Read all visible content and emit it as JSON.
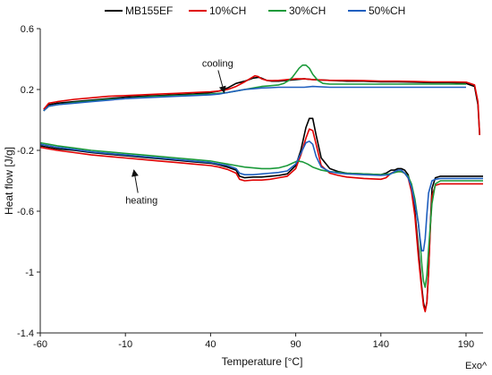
{
  "chart_data": {
    "type": "line",
    "title": "",
    "xlabel": "Temperature [°C]",
    "ylabel": "Heat flow [J/g]",
    "corner_note": "Exo^",
    "xlim": [
      -60,
      200
    ],
    "ylim": [
      -1.4,
      0.6
    ],
    "xticks": [
      -60,
      -10,
      40,
      90,
      140,
      190
    ],
    "yticks": [
      0.6,
      0.2,
      -0.2,
      -0.6,
      -1,
      -1.4
    ],
    "ytick_labels": [
      "0.6",
      "0.2",
      "-0.2",
      "-0.6",
      "-1",
      "-1.4"
    ],
    "grid": false,
    "legend_position": "top",
    "annotations": [
      {
        "text": "cooling",
        "x": 35,
        "y": 0.35,
        "arrow_to": [
          48,
          0.18
        ]
      },
      {
        "text": "heating",
        "x": -10,
        "y": -0.55,
        "arrow_to": [
          -5,
          -0.33
        ]
      }
    ],
    "series": [
      {
        "name": "MB155EF",
        "color": "#000000",
        "cooling": {
          "x": [
            -58,
            -55,
            -50,
            -40,
            -30,
            -20,
            -10,
            0,
            10,
            20,
            30,
            40,
            45,
            50,
            55,
            60,
            65,
            68,
            70,
            73,
            76,
            80,
            85,
            90,
            95,
            100,
            110,
            120,
            130,
            140,
            150,
            160,
            170,
            180,
            190,
            195,
            197,
            198
          ],
          "y": [
            0.06,
            0.1,
            0.11,
            0.12,
            0.13,
            0.14,
            0.15,
            0.155,
            0.16,
            0.165,
            0.17,
            0.18,
            0.19,
            0.21,
            0.24,
            0.255,
            0.275,
            0.28,
            0.275,
            0.26,
            0.255,
            0.255,
            0.26,
            0.265,
            0.27,
            0.265,
            0.26,
            0.255,
            0.255,
            0.25,
            0.25,
            0.248,
            0.245,
            0.245,
            0.24,
            0.22,
            0.1,
            -0.1
          ]
        },
        "heating": {
          "x": [
            -60,
            -55,
            -50,
            -40,
            -30,
            -20,
            -10,
            0,
            10,
            20,
            30,
            40,
            45,
            50,
            55,
            57,
            60,
            65,
            70,
            75,
            80,
            85,
            90,
            93,
            96,
            98,
            100,
            102,
            105,
            110,
            115,
            120,
            130,
            140,
            143,
            146,
            148,
            150,
            152,
            154,
            156,
            158,
            160,
            162,
            164,
            165,
            166,
            167,
            168,
            169,
            170,
            172,
            175,
            180,
            190,
            200
          ],
          "y": [
            -0.17,
            -0.18,
            -0.19,
            -0.2,
            -0.215,
            -0.225,
            -0.235,
            -0.245,
            -0.255,
            -0.265,
            -0.275,
            -0.285,
            -0.295,
            -0.31,
            -0.33,
            -0.37,
            -0.38,
            -0.375,
            -0.375,
            -0.37,
            -0.365,
            -0.355,
            -0.3,
            -0.2,
            -0.05,
            0.01,
            0.01,
            -0.1,
            -0.25,
            -0.32,
            -0.34,
            -0.35,
            -0.355,
            -0.36,
            -0.35,
            -0.33,
            -0.33,
            -0.32,
            -0.32,
            -0.33,
            -0.36,
            -0.45,
            -0.6,
            -0.85,
            -1.1,
            -1.2,
            -1.25,
            -1.2,
            -1.0,
            -0.7,
            -0.45,
            -0.38,
            -0.37,
            -0.37,
            -0.37,
            -0.37
          ]
        }
      },
      {
        "name": "10%CH",
        "color": "#e00000",
        "cooling": {
          "x": [
            -58,
            -55,
            -50,
            -40,
            -30,
            -20,
            -10,
            0,
            10,
            20,
            30,
            40,
            45,
            50,
            55,
            60,
            63,
            66,
            68,
            70,
            73,
            76,
            80,
            85,
            90,
            95,
            100,
            110,
            120,
            130,
            140,
            150,
            160,
            170,
            180,
            190,
            195,
            197,
            198
          ],
          "y": [
            0.07,
            0.11,
            0.12,
            0.135,
            0.145,
            0.155,
            0.16,
            0.165,
            0.17,
            0.175,
            0.18,
            0.185,
            0.19,
            0.2,
            0.22,
            0.25,
            0.27,
            0.29,
            0.285,
            0.27,
            0.26,
            0.258,
            0.26,
            0.265,
            0.27,
            0.27,
            0.265,
            0.26,
            0.26,
            0.258,
            0.255,
            0.255,
            0.253,
            0.25,
            0.25,
            0.248,
            0.23,
            0.12,
            -0.1
          ]
        },
        "heating": {
          "x": [
            -60,
            -55,
            -50,
            -40,
            -30,
            -20,
            -10,
            0,
            10,
            20,
            30,
            40,
            45,
            50,
            55,
            57,
            60,
            65,
            70,
            75,
            80,
            85,
            90,
            93,
            96,
            98,
            100,
            102,
            105,
            110,
            115,
            120,
            130,
            140,
            143,
            146,
            148,
            150,
            152,
            154,
            156,
            158,
            160,
            162,
            164,
            165,
            166,
            167,
            168,
            169,
            170,
            172,
            175,
            180,
            190,
            200
          ],
          "y": [
            -0.18,
            -0.19,
            -0.2,
            -0.215,
            -0.23,
            -0.24,
            -0.25,
            -0.26,
            -0.27,
            -0.28,
            -0.29,
            -0.3,
            -0.31,
            -0.325,
            -0.35,
            -0.39,
            -0.4,
            -0.395,
            -0.395,
            -0.39,
            -0.38,
            -0.37,
            -0.32,
            -0.23,
            -0.12,
            -0.06,
            -0.07,
            -0.16,
            -0.3,
            -0.35,
            -0.365,
            -0.375,
            -0.385,
            -0.39,
            -0.38,
            -0.35,
            -0.34,
            -0.34,
            -0.34,
            -0.35,
            -0.38,
            -0.47,
            -0.63,
            -0.9,
            -1.12,
            -1.22,
            -1.26,
            -1.2,
            -1.0,
            -0.72,
            -0.5,
            -0.43,
            -0.42,
            -0.42,
            -0.42,
            -0.42
          ]
        }
      },
      {
        "name": "30%CH",
        "color": "#1b9a3a",
        "cooling": {
          "x": [
            -58,
            -55,
            -50,
            -40,
            -30,
            -20,
            -10,
            0,
            10,
            20,
            30,
            40,
            45,
            50,
            55,
            60,
            65,
            70,
            75,
            80,
            83,
            86,
            88,
            90,
            92,
            94,
            96,
            98,
            100,
            103,
            106,
            110,
            120,
            130,
            140,
            150,
            160,
            170,
            180,
            190
          ],
          "y": [
            0.06,
            0.09,
            0.1,
            0.115,
            0.125,
            0.135,
            0.14,
            0.15,
            0.155,
            0.16,
            0.165,
            0.17,
            0.175,
            0.18,
            0.19,
            0.2,
            0.21,
            0.22,
            0.225,
            0.23,
            0.24,
            0.26,
            0.28,
            0.31,
            0.34,
            0.36,
            0.36,
            0.34,
            0.3,
            0.26,
            0.24,
            0.235,
            0.235,
            0.235,
            0.235,
            0.235,
            0.235,
            0.235,
            0.235,
            0.235
          ]
        },
        "heating": {
          "x": [
            -60,
            -55,
            -50,
            -40,
            -30,
            -20,
            -10,
            0,
            10,
            20,
            30,
            40,
            45,
            50,
            55,
            60,
            65,
            70,
            75,
            80,
            85,
            88,
            91,
            94,
            97,
            100,
            105,
            110,
            120,
            130,
            140,
            145,
            150,
            152,
            154,
            156,
            158,
            160,
            162,
            163,
            164,
            165,
            166,
            167,
            168,
            170,
            172,
            175,
            180,
            190,
            200
          ],
          "y": [
            -0.15,
            -0.16,
            -0.17,
            -0.185,
            -0.2,
            -0.21,
            -0.22,
            -0.23,
            -0.24,
            -0.25,
            -0.26,
            -0.27,
            -0.28,
            -0.29,
            -0.3,
            -0.31,
            -0.315,
            -0.32,
            -0.32,
            -0.315,
            -0.3,
            -0.285,
            -0.27,
            -0.275,
            -0.29,
            -0.31,
            -0.33,
            -0.34,
            -0.35,
            -0.355,
            -0.36,
            -0.355,
            -0.34,
            -0.34,
            -0.35,
            -0.37,
            -0.42,
            -0.52,
            -0.68,
            -0.8,
            -0.95,
            -1.06,
            -1.1,
            -1.02,
            -0.85,
            -0.55,
            -0.42,
            -0.4,
            -0.4,
            -0.4,
            -0.4
          ]
        }
      },
      {
        "name": "50%CH",
        "color": "#1f5fbf",
        "cooling": {
          "x": [
            -58,
            -55,
            -50,
            -40,
            -30,
            -20,
            -10,
            0,
            10,
            20,
            30,
            40,
            45,
            50,
            55,
            60,
            65,
            70,
            75,
            80,
            85,
            90,
            95,
            100,
            110,
            120,
            130,
            140,
            150,
            160,
            170,
            180,
            190
          ],
          "y": [
            0.06,
            0.09,
            0.1,
            0.11,
            0.12,
            0.13,
            0.14,
            0.145,
            0.15,
            0.155,
            0.16,
            0.165,
            0.17,
            0.18,
            0.19,
            0.2,
            0.205,
            0.21,
            0.212,
            0.215,
            0.215,
            0.215,
            0.215,
            0.22,
            0.215,
            0.215,
            0.215,
            0.215,
            0.215,
            0.215,
            0.215,
            0.215,
            0.215
          ]
        },
        "heating": {
          "x": [
            -60,
            -55,
            -50,
            -40,
            -30,
            -20,
            -10,
            0,
            10,
            20,
            30,
            40,
            45,
            50,
            55,
            57,
            60,
            65,
            70,
            75,
            80,
            85,
            90,
            93,
            96,
            98,
            100,
            102,
            105,
            110,
            115,
            120,
            130,
            140,
            145,
            148,
            150,
            152,
            154,
            156,
            158,
            160,
            162,
            163,
            164,
            165,
            166,
            167,
            168,
            170,
            172,
            175,
            180,
            190,
            200
          ],
          "y": [
            -0.16,
            -0.17,
            -0.18,
            -0.195,
            -0.21,
            -0.22,
            -0.23,
            -0.24,
            -0.25,
            -0.26,
            -0.27,
            -0.28,
            -0.29,
            -0.3,
            -0.32,
            -0.35,
            -0.36,
            -0.36,
            -0.355,
            -0.35,
            -0.345,
            -0.335,
            -0.29,
            -0.22,
            -0.15,
            -0.14,
            -0.16,
            -0.24,
            -0.31,
            -0.34,
            -0.35,
            -0.355,
            -0.36,
            -0.365,
            -0.36,
            -0.34,
            -0.33,
            -0.33,
            -0.35,
            -0.38,
            -0.44,
            -0.55,
            -0.68,
            -0.78,
            -0.86,
            -0.86,
            -0.78,
            -0.62,
            -0.48,
            -0.4,
            -0.39,
            -0.385,
            -0.385,
            -0.385,
            -0.385
          ]
        }
      }
    ]
  }
}
